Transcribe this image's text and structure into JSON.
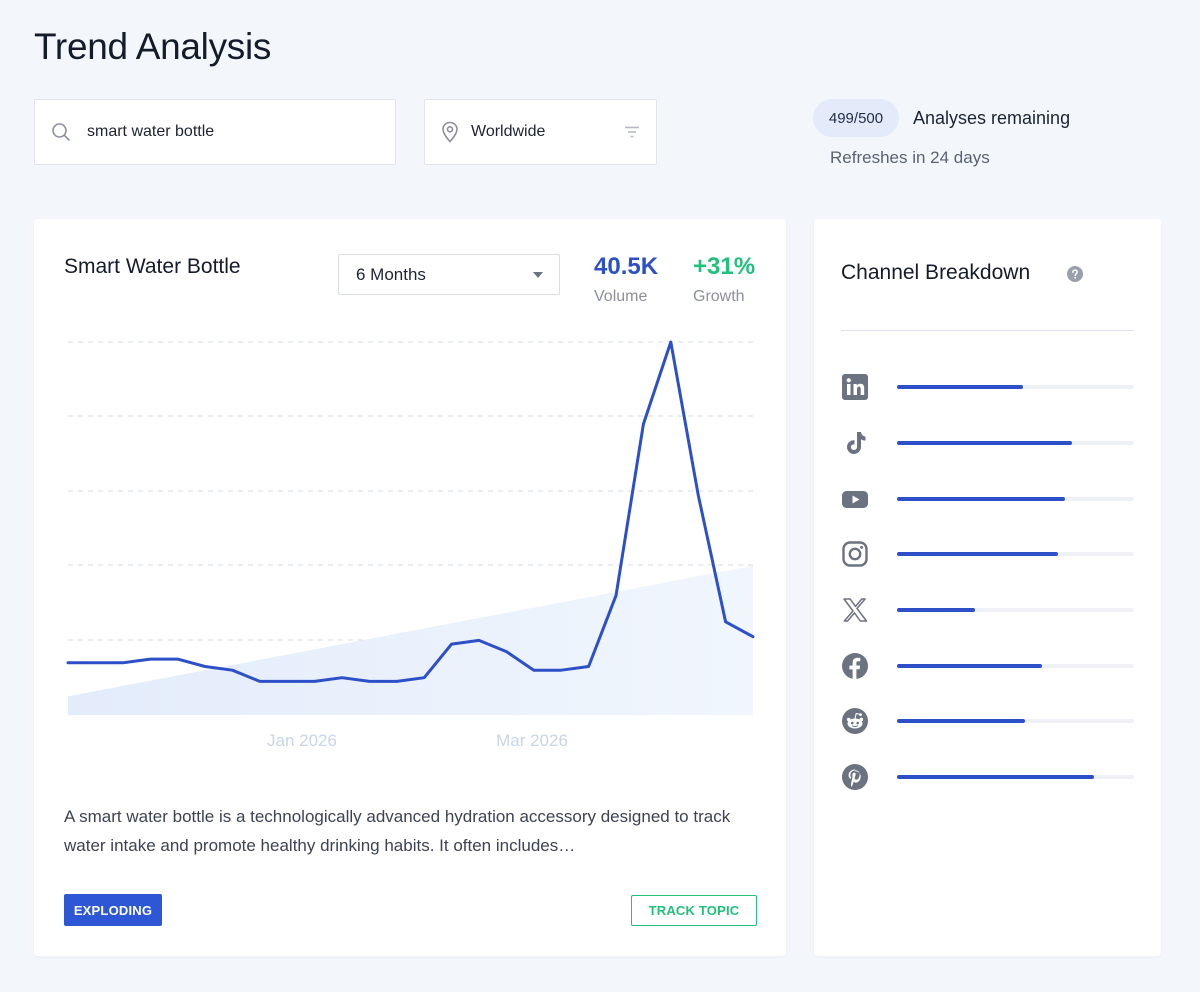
{
  "page": {
    "title": "Trend Analysis"
  },
  "search": {
    "value": "smart water bottle",
    "icon": "search-icon"
  },
  "location": {
    "value": "Worldwide",
    "icon": "location-pin-icon",
    "filter_icon": "filter-icon"
  },
  "quota": {
    "badge": "499/500",
    "label": "Analyses remaining",
    "refresh": "Refreshes in 24 days"
  },
  "topic": {
    "title": "Smart Water Bottle",
    "range": "6 Months",
    "volume_value": "40.5K",
    "volume_label": "Volume",
    "growth_value": "+31%",
    "growth_label": "Growth",
    "description": "A smart water bottle is a technologically advanced hydration accessory designed to track water intake and promote healthy drinking habits. It often includes…",
    "status": "EXPLODING",
    "track_label": "TRACK TOPIC"
  },
  "colors": {
    "accent": "#2d4fc8",
    "growth": "#22c07a",
    "status_bg": "#2d57d4"
  },
  "chart_data": {
    "type": "line",
    "x_ticks": [
      "Jan 2026",
      "Mar 2026"
    ],
    "y_range": [
      0,
      100
    ],
    "grid": true,
    "series": [
      {
        "values": [
          14,
          14,
          14,
          15,
          15,
          13,
          12,
          9,
          9,
          9,
          10,
          9,
          9,
          10,
          19,
          20,
          17,
          12,
          12,
          13,
          32,
          78,
          100,
          59,
          25,
          21
        ]
      },
      {
        "type": "area",
        "values": [
          5,
          40
        ]
      }
    ]
  },
  "channels": {
    "title": "Channel Breakdown",
    "help_icon": "help-icon",
    "items": [
      {
        "icon": "linkedin-icon",
        "share": 0.53
      },
      {
        "icon": "tiktok-icon",
        "share": 0.74
      },
      {
        "icon": "youtube-icon",
        "share": 0.71
      },
      {
        "icon": "instagram-icon",
        "share": 0.68
      },
      {
        "icon": "x-icon",
        "share": 0.33
      },
      {
        "icon": "facebook-icon",
        "share": 0.61
      },
      {
        "icon": "reddit-icon",
        "share": 0.54
      },
      {
        "icon": "pinterest-icon",
        "share": 0.83
      }
    ]
  }
}
